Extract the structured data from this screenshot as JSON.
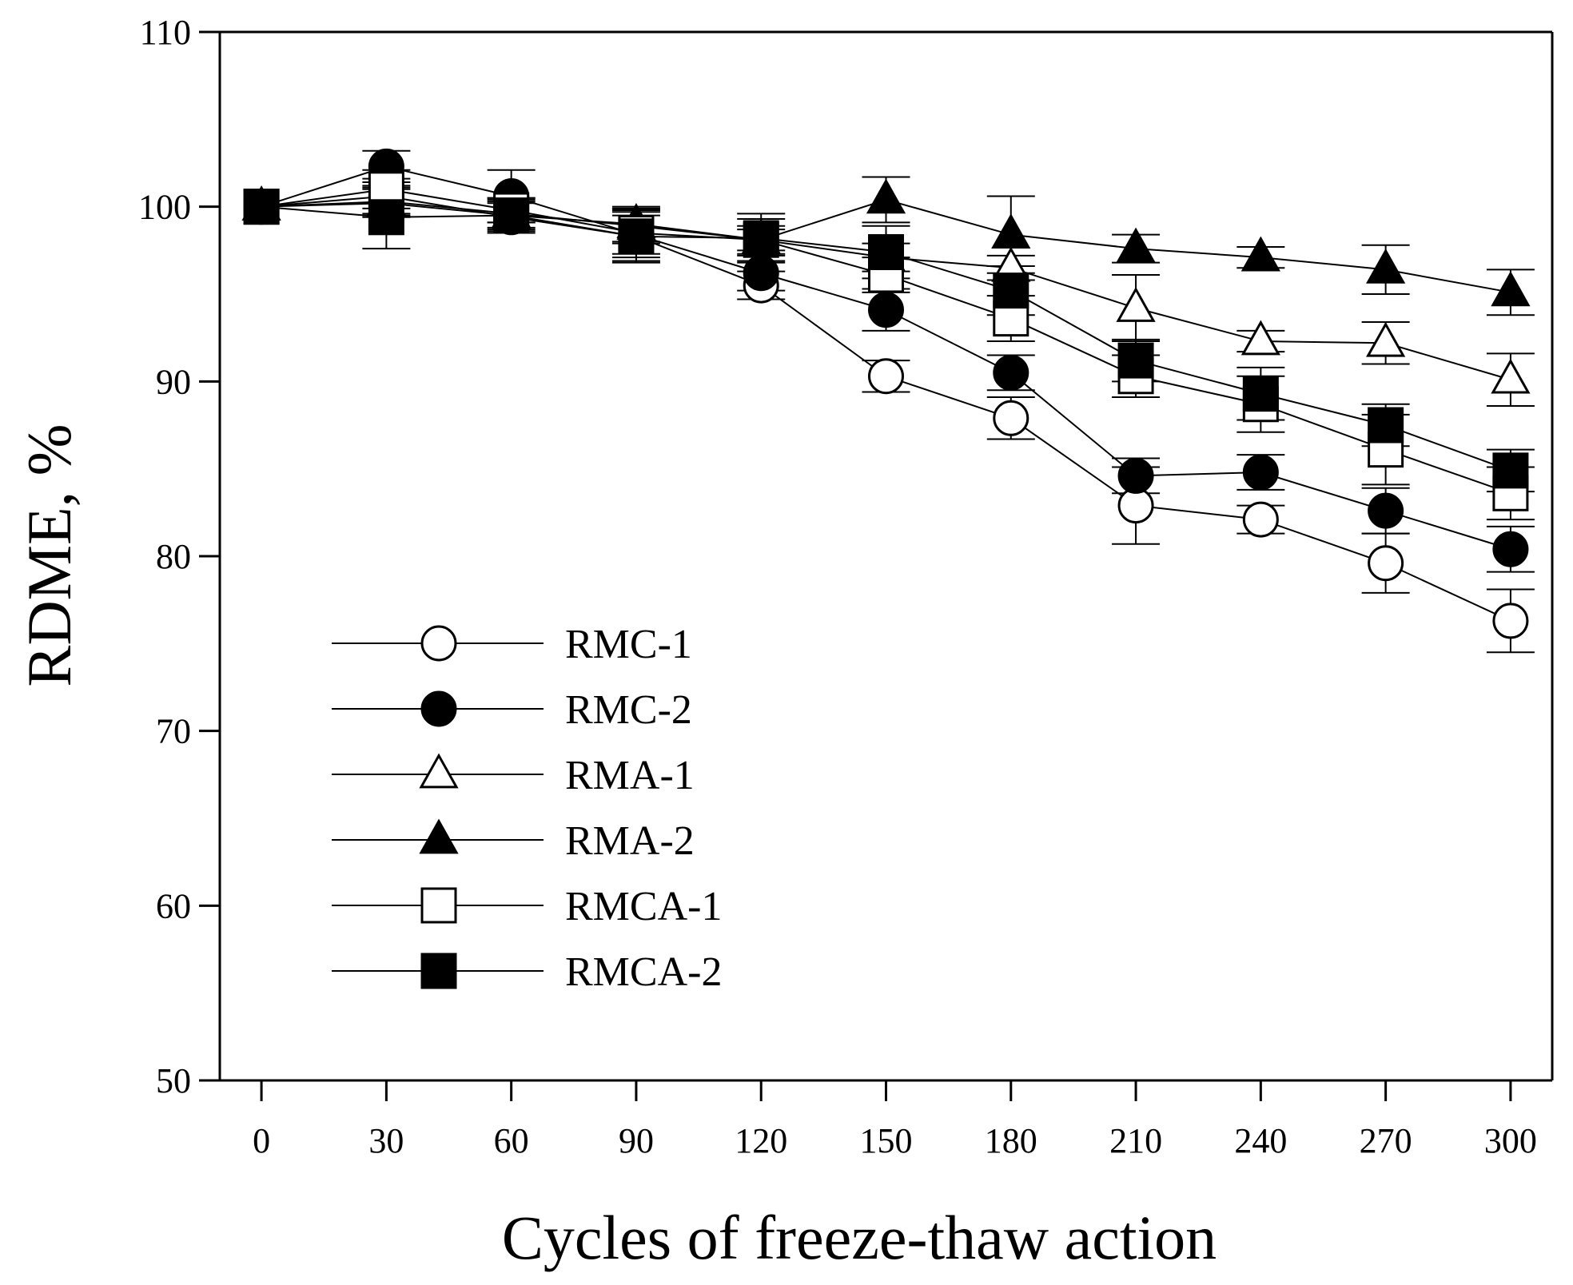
{
  "chart_data": {
    "type": "line",
    "title": "",
    "xlabel": "Cycles of freeze-thaw action",
    "ylabel": "RDME, %",
    "x": [
      0,
      30,
      60,
      90,
      120,
      150,
      180,
      210,
      240,
      270,
      300
    ],
    "xlim": [
      -10,
      310
    ],
    "ylim": [
      50,
      110
    ],
    "x_ticks": [
      0,
      30,
      60,
      90,
      120,
      150,
      180,
      210,
      240,
      270,
      300
    ],
    "y_ticks": [
      50,
      60,
      70,
      80,
      90,
      100,
      110
    ],
    "grid": false,
    "legend_position": "lower-left",
    "error_bars": true,
    "series": [
      {
        "name": "RMC-1",
        "marker": "circle",
        "filled": false,
        "values": [
          100,
          100.6,
          99.4,
          98.3,
          95.5,
          90.3,
          87.9,
          82.9,
          82.1,
          79.6,
          76.3
        ],
        "errors": [
          0,
          1.0,
          0.8,
          1.2,
          0.8,
          0.9,
          1.2,
          2.2,
          0.8,
          1.7,
          1.8
        ]
      },
      {
        "name": "RMC-2",
        "marker": "circle",
        "filled": true,
        "values": [
          100,
          102.3,
          100.6,
          98.4,
          96.2,
          94.1,
          90.5,
          84.6,
          84.8,
          82.6,
          80.4
        ],
        "errors": [
          0,
          0.9,
          1.5,
          1.5,
          1.0,
          1.2,
          1.0,
          1.0,
          1.0,
          1.3,
          1.3
        ]
      },
      {
        "name": "RMA-1",
        "marker": "triangle",
        "filled": false,
        "values": [
          100,
          100.2,
          99.5,
          99.0,
          98.1,
          97.1,
          96.5,
          94.2,
          92.3,
          92.2,
          90.1
        ],
        "errors": [
          0,
          0.8,
          0.8,
          1.0,
          0.6,
          0.8,
          0.7,
          1.9,
          0.6,
          1.2,
          1.5
        ]
      },
      {
        "name": "RMA-2",
        "marker": "triangle",
        "filled": true,
        "values": [
          100,
          100.3,
          99.6,
          98.9,
          98.1,
          100.4,
          98.4,
          97.6,
          97.1,
          96.4,
          95.1
        ],
        "errors": [
          0,
          0.8,
          0.8,
          1.0,
          0.8,
          1.3,
          2.2,
          0.8,
          0.6,
          1.4,
          1.3
        ]
      },
      {
        "name": "RMCA-1",
        "marker": "square",
        "filled": false,
        "values": [
          100,
          101.0,
          99.8,
          98.5,
          98.1,
          96.1,
          93.6,
          90.3,
          88.7,
          86.1,
          83.6
        ],
        "errors": [
          0,
          1.1,
          0.7,
          1.2,
          1.2,
          1.0,
          1.3,
          1.2,
          1.6,
          2.0,
          1.5
        ]
      },
      {
        "name": "RMCA-2",
        "marker": "square",
        "filled": true,
        "values": [
          100,
          99.4,
          99.5,
          98.3,
          98.2,
          97.4,
          95.2,
          91.2,
          89.3,
          87.5,
          84.9
        ],
        "errors": [
          0,
          1.8,
          1.0,
          1.5,
          1.4,
          1.5,
          1.4,
          1.2,
          1.5,
          1.2,
          1.2
        ]
      }
    ]
  }
}
